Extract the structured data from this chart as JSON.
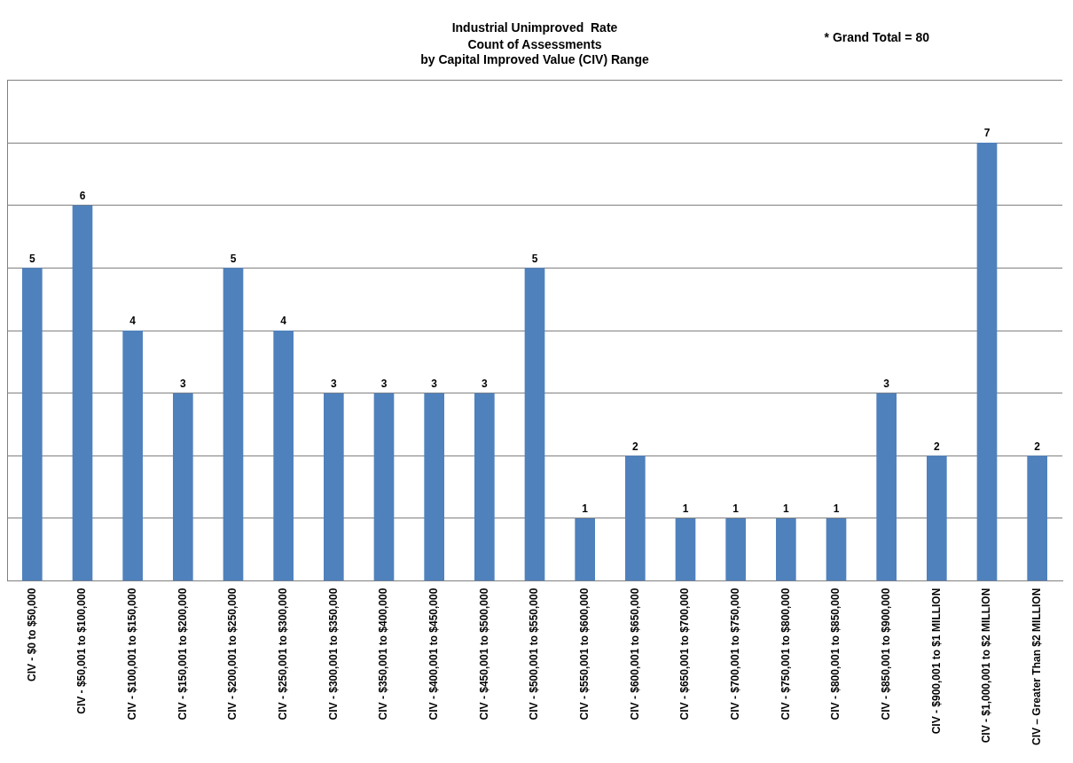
{
  "chart_data": {
    "type": "bar",
    "title": "Industrial Unimproved  Rate",
    "subtitle": "Count of Assessments\nby Capital Improved Value (CIV) Range",
    "annotations": [
      "* Grand Total = 80"
    ],
    "categories": [
      "CIV - $0 to $50,000",
      "CIV - $50,001 to $100,000",
      "CIV - $100,001 to $150,000",
      "CIV - $150,001 to $200,000",
      "CIV - $200,001 to $250,000",
      "CIV - $250,001 to $300,000",
      "CIV - $300,001 to $350,000",
      "CIV - $350,001 to $400,000",
      "CIV - $400,001 to $450,000",
      "CIV - $450,001 to $500,000",
      "CIV - $500,001 to $550,000",
      "CIV - $550,001 to $600,000",
      "CIV - $600,001 to $650,000",
      "CIV - $650,001 to $700,000",
      "CIV - $700,001 to $750,000",
      "CIV - $750,001 to $800,000",
      "CIV - $800,001 to $850,000",
      "CIV - $850,001 to $900,000",
      "CIV - $900,001 to $1 MILLION",
      "CIV - $1,000,001 to $2 MILLION",
      "CIV – Greater Than $2 MILLION"
    ],
    "values": [
      5,
      6,
      4,
      3,
      5,
      4,
      3,
      3,
      3,
      3,
      5,
      1,
      2,
      1,
      1,
      1,
      1,
      3,
      2,
      7,
      2
    ],
    "color": "#4f81bd",
    "data_labels": true,
    "grid": "y",
    "tick_labels": "x",
    "ylim": [
      0,
      8
    ],
    "yticks": [
      {
        "value": 0,
        "label": null
      },
      {
        "value": 1,
        "label": null
      },
      {
        "value": 2,
        "label": null
      },
      {
        "value": 3,
        "label": null
      },
      {
        "value": 4,
        "label": null
      },
      {
        "value": 5,
        "label": null
      },
      {
        "value": 6,
        "label": null
      },
      {
        "value": 7,
        "label": null
      },
      {
        "value": 8,
        "label": null
      }
    ]
  }
}
